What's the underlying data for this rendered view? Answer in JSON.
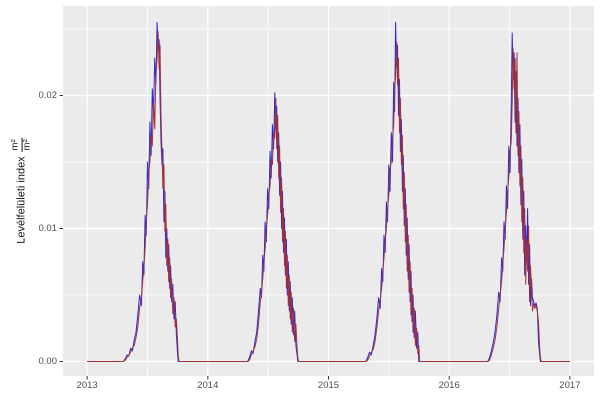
{
  "figure": {
    "background": "#FFFFFF",
    "panel_background": "#EBEBEB",
    "grid_color": "#FFFFFF",
    "tick_mark_color": "#333333",
    "tick_label_color": "#4D4D4D",
    "title": "",
    "legend": "none"
  },
  "chart_data": {
    "type": "line",
    "title": "",
    "xlabel": "",
    "ylabel_text": "Levélfelületi index",
    "ylabel_frac_num": "m²",
    "ylabel_frac_den": "m²",
    "xlim": [
      2012.8,
      2017.2
    ],
    "ylim": [
      -0.00109,
      0.02673
    ],
    "grid": "white major and minor gridlines on gray panel",
    "x_ticks": [
      2013,
      2014,
      2015,
      2016,
      2017
    ],
    "x_tick_labels": [
      "2013",
      "2014",
      "2015",
      "2016",
      "2017"
    ],
    "x_minor_ticks": [
      2013.5,
      2014.5,
      2015.5,
      2016.5
    ],
    "y_ticks": [
      0.0,
      0.01,
      0.02
    ],
    "y_tick_labels": [
      "0.00",
      "0.01",
      "0.02"
    ],
    "y_minor_ticks": [
      0.005,
      0.015,
      0.025
    ],
    "series": [
      {
        "name": "blue-line",
        "column": 1,
        "color": "#2A2AD8",
        "width": 1
      },
      {
        "name": "dark-red-line",
        "column": 2,
        "color": "#A23238",
        "width": 1
      }
    ],
    "columns": [
      "time_decimal_year",
      "lai_blue",
      "lai_red"
    ],
    "rows": [
      [
        2013.0,
        0,
        0
      ],
      [
        2013.3,
        0,
        0
      ],
      [
        2013.315,
        0.0002,
        0.0001
      ],
      [
        2013.33,
        0.0005,
        0.0003
      ],
      [
        2013.345,
        0.0004,
        0.0005
      ],
      [
        2013.36,
        0.001,
        0.0007
      ],
      [
        2013.375,
        0.0008,
        0.001
      ],
      [
        2013.39,
        0.0016,
        0.0012
      ],
      [
        2013.405,
        0.0022,
        0.0018
      ],
      [
        2013.42,
        0.0035,
        0.0026
      ],
      [
        2013.435,
        0.005,
        0.004
      ],
      [
        2013.45,
        0.0042,
        0.0048
      ],
      [
        2013.46,
        0.0075,
        0.006
      ],
      [
        2013.47,
        0.0065,
        0.0072
      ],
      [
        2013.48,
        0.011,
        0.0085
      ],
      [
        2013.49,
        0.0095,
        0.0105
      ],
      [
        2013.5,
        0.015,
        0.0118
      ],
      [
        2013.51,
        0.013,
        0.0142
      ],
      [
        2013.52,
        0.018,
        0.015
      ],
      [
        2013.53,
        0.0155,
        0.017
      ],
      [
        2013.54,
        0.0205,
        0.0162
      ],
      [
        2013.55,
        0.0185,
        0.0195
      ],
      [
        2013.56,
        0.0228,
        0.0175
      ],
      [
        2013.57,
        0.0208,
        0.0215
      ],
      [
        2013.58,
        0.0255,
        0.0228
      ],
      [
        2013.588,
        0.0235,
        0.0248
      ],
      [
        2013.596,
        0.0242,
        0.022
      ],
      [
        2013.604,
        0.02,
        0.0238
      ],
      [
        2013.612,
        0.0165,
        0.0185
      ],
      [
        2013.62,
        0.0148,
        0.0158
      ],
      [
        2013.628,
        0.016,
        0.013
      ],
      [
        2013.636,
        0.0105,
        0.0148
      ],
      [
        2013.644,
        0.0128,
        0.0098
      ],
      [
        2013.652,
        0.0078,
        0.0118
      ],
      [
        2013.66,
        0.01,
        0.0072
      ],
      [
        2013.668,
        0.0068,
        0.0092
      ],
      [
        2013.676,
        0.0088,
        0.006
      ],
      [
        2013.684,
        0.0055,
        0.0078
      ],
      [
        2013.692,
        0.0072,
        0.0048
      ],
      [
        2013.7,
        0.0045,
        0.0062
      ],
      [
        2013.71,
        0.0058,
        0.0036
      ],
      [
        2013.72,
        0.0032,
        0.0048
      ],
      [
        2013.73,
        0.0045,
        0.0026
      ],
      [
        2013.74,
        0.002,
        0.0032
      ],
      [
        2013.75,
        0.0005,
        0.0015
      ],
      [
        2013.755,
        0,
        0.0004
      ],
      [
        2013.762,
        0,
        0
      ],
      [
        2014.33,
        0,
        0
      ],
      [
        2014.345,
        0.0003,
        0.0001
      ],
      [
        2014.36,
        0.0008,
        0.0005
      ],
      [
        2014.375,
        0.0006,
        0.0008
      ],
      [
        2014.39,
        0.0015,
        0.0011
      ],
      [
        2014.405,
        0.0022,
        0.0017
      ],
      [
        2014.42,
        0.0038,
        0.0028
      ],
      [
        2014.435,
        0.0055,
        0.0045
      ],
      [
        2014.445,
        0.0048,
        0.0052
      ],
      [
        2014.455,
        0.008,
        0.0062
      ],
      [
        2014.465,
        0.0068,
        0.0075
      ],
      [
        2014.475,
        0.0105,
        0.0085
      ],
      [
        2014.485,
        0.009,
        0.01
      ],
      [
        2014.495,
        0.013,
        0.011
      ],
      [
        2014.505,
        0.0115,
        0.0125
      ],
      [
        2014.515,
        0.0158,
        0.0132
      ],
      [
        2014.525,
        0.0138,
        0.0152
      ],
      [
        2014.535,
        0.0178,
        0.0148
      ],
      [
        2014.545,
        0.016,
        0.0172
      ],
      [
        2014.555,
        0.0202,
        0.0168
      ],
      [
        2014.563,
        0.0175,
        0.0198
      ],
      [
        2014.571,
        0.0192,
        0.016
      ],
      [
        2014.579,
        0.015,
        0.0185
      ],
      [
        2014.587,
        0.0172,
        0.0138
      ],
      [
        2014.595,
        0.0125,
        0.0162
      ],
      [
        2014.603,
        0.015,
        0.0112
      ],
      [
        2014.611,
        0.01,
        0.0138
      ],
      [
        2014.619,
        0.0128,
        0.009
      ],
      [
        2014.627,
        0.0082,
        0.0115
      ],
      [
        2014.635,
        0.0108,
        0.0072
      ],
      [
        2014.643,
        0.0065,
        0.0098
      ],
      [
        2014.651,
        0.0092,
        0.0055
      ],
      [
        2014.659,
        0.005,
        0.008
      ],
      [
        2014.667,
        0.0075,
        0.0042
      ],
      [
        2014.675,
        0.0038,
        0.0065
      ],
      [
        2014.683,
        0.006,
        0.0032
      ],
      [
        2014.691,
        0.0028,
        0.0052
      ],
      [
        2014.7,
        0.0048,
        0.0022
      ],
      [
        2014.71,
        0.002,
        0.004
      ],
      [
        2014.72,
        0.0038,
        0.0015
      ],
      [
        2014.73,
        0.0012,
        0.0028
      ],
      [
        2014.74,
        0.0005,
        0.001
      ],
      [
        2014.746,
        0,
        0.0003
      ],
      [
        2014.752,
        0,
        0
      ],
      [
        2015.31,
        0,
        0
      ],
      [
        2015.325,
        0.0003,
        0.0001
      ],
      [
        2015.34,
        0.0007,
        0.0004
      ],
      [
        2015.355,
        0.0005,
        0.0007
      ],
      [
        2015.37,
        0.0012,
        0.0009
      ],
      [
        2015.385,
        0.002,
        0.0015
      ],
      [
        2015.4,
        0.0032,
        0.0025
      ],
      [
        2015.415,
        0.0048,
        0.0038
      ],
      [
        2015.428,
        0.004,
        0.0046
      ],
      [
        2015.44,
        0.007,
        0.0055
      ],
      [
        2015.45,
        0.006,
        0.0068
      ],
      [
        2015.46,
        0.0095,
        0.0078
      ],
      [
        2015.47,
        0.0082,
        0.0092
      ],
      [
        2015.48,
        0.012,
        0.01
      ],
      [
        2015.49,
        0.0105,
        0.0115
      ],
      [
        2015.5,
        0.0148,
        0.0125
      ],
      [
        2015.51,
        0.0128,
        0.0145
      ],
      [
        2015.52,
        0.0172,
        0.015
      ],
      [
        2015.53,
        0.015,
        0.0168
      ],
      [
        2015.54,
        0.021,
        0.0178
      ],
      [
        2015.548,
        0.0188,
        0.0205
      ],
      [
        2015.556,
        0.0255,
        0.0215
      ],
      [
        2015.564,
        0.0222,
        0.024
      ],
      [
        2015.572,
        0.0238,
        0.0208
      ],
      [
        2015.58,
        0.0185,
        0.0228
      ],
      [
        2015.588,
        0.0212,
        0.0172
      ],
      [
        2015.596,
        0.0158,
        0.0198
      ],
      [
        2015.604,
        0.0182,
        0.0148
      ],
      [
        2015.612,
        0.0128,
        0.017
      ],
      [
        2015.62,
        0.0155,
        0.0115
      ],
      [
        2015.628,
        0.0102,
        0.0142
      ],
      [
        2015.636,
        0.013,
        0.009
      ],
      [
        2015.644,
        0.008,
        0.0118
      ],
      [
        2015.652,
        0.0108,
        0.0068
      ],
      [
        2015.66,
        0.0062,
        0.0095
      ],
      [
        2015.668,
        0.0088,
        0.0052
      ],
      [
        2015.676,
        0.0045,
        0.0075
      ],
      [
        2015.684,
        0.0068,
        0.0035
      ],
      [
        2015.692,
        0.003,
        0.0055
      ],
      [
        2015.7,
        0.005,
        0.0022
      ],
      [
        2015.71,
        0.0018,
        0.004
      ],
      [
        2015.72,
        0.0038,
        0.0012
      ],
      [
        2015.73,
        0.001,
        0.0025
      ],
      [
        2015.74,
        0.0022,
        0.0006
      ],
      [
        2015.748,
        0,
        0.0012
      ],
      [
        2015.756,
        0,
        0
      ],
      [
        2016.32,
        0,
        0
      ],
      [
        2016.335,
        0.0003,
        0.0001
      ],
      [
        2016.35,
        0.0008,
        0.0005
      ],
      [
        2016.365,
        0.0014,
        0.001
      ],
      [
        2016.38,
        0.0022,
        0.0016
      ],
      [
        2016.395,
        0.0035,
        0.0026
      ],
      [
        2016.41,
        0.0052,
        0.004
      ],
      [
        2016.422,
        0.0045,
        0.005
      ],
      [
        2016.434,
        0.0078,
        0.006
      ],
      [
        2016.444,
        0.0068,
        0.0074
      ],
      [
        2016.454,
        0.0105,
        0.0085
      ],
      [
        2016.464,
        0.0092,
        0.01
      ],
      [
        2016.474,
        0.0132,
        0.0112
      ],
      [
        2016.484,
        0.0115,
        0.0128
      ],
      [
        2016.494,
        0.0162,
        0.0138
      ],
      [
        2016.504,
        0.0142,
        0.0158
      ],
      [
        2016.514,
        0.019,
        0.0165
      ],
      [
        2016.522,
        0.0247,
        0.0195
      ],
      [
        2016.53,
        0.0212,
        0.0235
      ],
      [
        2016.538,
        0.0232,
        0.0205
      ],
      [
        2016.546,
        0.018,
        0.0228
      ],
      [
        2016.554,
        0.0218,
        0.0172
      ],
      [
        2016.562,
        0.0162,
        0.0232
      ],
      [
        2016.57,
        0.0198,
        0.0155
      ],
      [
        2016.578,
        0.0142,
        0.0188
      ],
      [
        2016.586,
        0.0178,
        0.0132
      ],
      [
        2016.594,
        0.0118,
        0.0162
      ],
      [
        2016.602,
        0.0152,
        0.0105
      ],
      [
        2016.61,
        0.0092,
        0.0138
      ],
      [
        2016.618,
        0.0128,
        0.0082
      ],
      [
        2016.626,
        0.0065,
        0.0115
      ],
      [
        2016.634,
        0.0102,
        0.0058
      ],
      [
        2016.642,
        0.0075,
        0.0092
      ],
      [
        2016.65,
        0.0115,
        0.0068
      ],
      [
        2016.658,
        0.0058,
        0.0102
      ],
      [
        2016.666,
        0.0088,
        0.0045
      ],
      [
        2016.674,
        0.0042,
        0.0072
      ],
      [
        2016.682,
        0.0062,
        0.0055
      ],
      [
        2016.69,
        0.0048,
        0.0038
      ],
      [
        2016.7,
        0.0045,
        0.0044
      ],
      [
        2016.71,
        0.0042,
        0.004
      ],
      [
        2016.72,
        0.0044,
        0.0042
      ],
      [
        2016.73,
        0.004,
        0.0038
      ],
      [
        2016.74,
        0.0015,
        0.003
      ],
      [
        2016.75,
        0.0005,
        0.001
      ],
      [
        2016.756,
        0,
        0.0003
      ],
      [
        2016.762,
        0,
        0
      ],
      [
        2017.0,
        0,
        0
      ]
    ]
  }
}
